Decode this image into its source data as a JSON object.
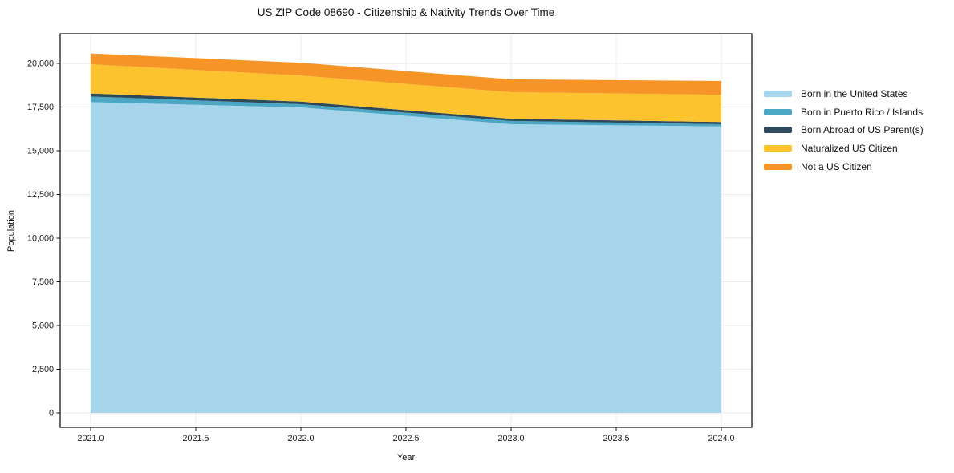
{
  "title": "US ZIP Code 08690 - Citizenship & Nativity Trends Over Time",
  "chart_data": {
    "type": "area",
    "stacked": true,
    "title": "US ZIP Code 08690 - Citizenship & Nativity Trends Over Time",
    "xlabel": "Year",
    "ylabel": "Population",
    "x": [
      2021,
      2022,
      2023,
      2024
    ],
    "series": [
      {
        "name": "Born in the United States",
        "color": "#a6d4ea",
        "values": [
          17780,
          17475,
          16515,
          16390
        ]
      },
      {
        "name": "Born in Puerto Rico / Islands",
        "color": "#4ba7c4",
        "values": [
          320,
          185,
          185,
          125
        ]
      },
      {
        "name": "Born Abroad of US Parent(s)",
        "color": "#2d4a5c",
        "values": [
          175,
          150,
          125,
          125
        ]
      },
      {
        "name": "Naturalized US Citizen",
        "color": "#fdc32f",
        "values": [
          1675,
          1490,
          1525,
          1560
        ]
      },
      {
        "name": "Not a US Citizen",
        "color": "#f79428",
        "values": [
          620,
          735,
          735,
          795
        ]
      }
    ],
    "totals": [
      20570,
      20035,
      19085,
      18995
    ],
    "xticks": [
      2021.0,
      2021.5,
      2022.0,
      2022.5,
      2023.0,
      2023.5,
      2024.0
    ],
    "yticks": [
      0,
      2500,
      5000,
      7500,
      10000,
      12500,
      15000,
      17500,
      20000
    ],
    "xlim": [
      2020.855,
      2024.145
    ],
    "ylim": [
      -826,
      21697
    ],
    "grid": true,
    "grid_color": "#ebebeb",
    "axis_color": "#1a1a1a",
    "legend_position": "right-outside"
  }
}
